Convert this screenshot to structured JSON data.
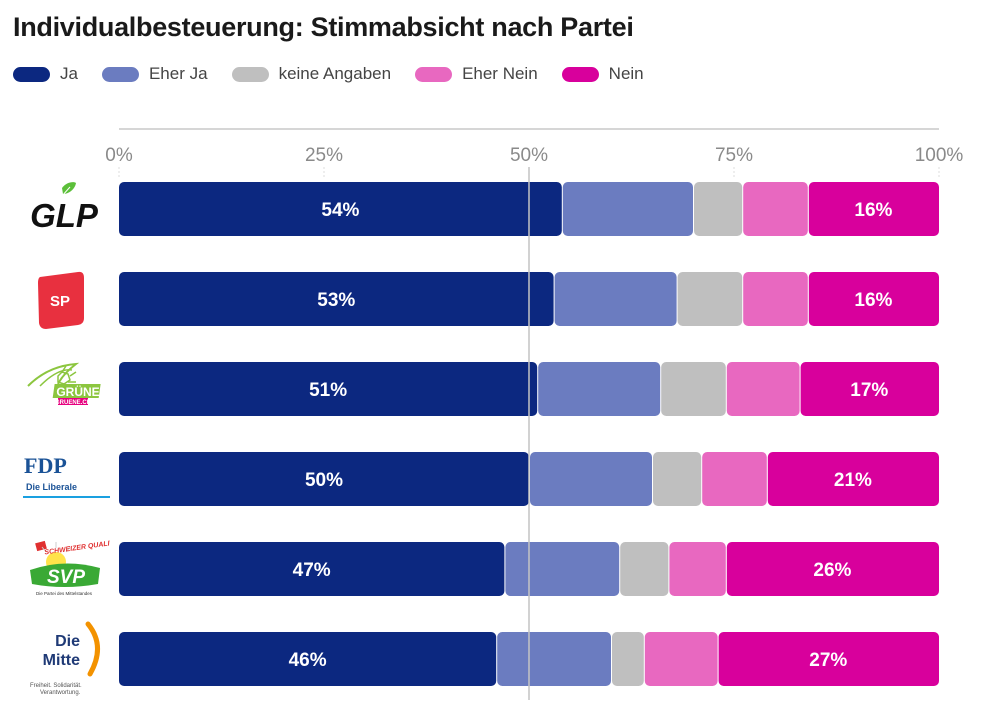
{
  "chart_data": {
    "type": "bar",
    "orientation": "horizontal",
    "stacked": true,
    "title": "Individualbesteuerung: Stimmabsicht nach Partei",
    "xlabel": "",
    "ylabel": "",
    "xlim": [
      0,
      100
    ],
    "x_ticks": [
      "0%",
      "25%",
      "50%",
      "75%",
      "100%"
    ],
    "x_tick_values": [
      0,
      25,
      50,
      75,
      100
    ],
    "reference_line": 50,
    "grid": false,
    "legend_position": "top-left",
    "categories": [
      "GLP",
      "SP",
      "GRÜNE",
      "FDP",
      "SVP",
      "Die Mitte"
    ],
    "series": [
      {
        "name": "Ja",
        "color": "#0c2880",
        "values": [
          54,
          53,
          51,
          50,
          47,
          46
        ],
        "labels": [
          "54%",
          "53%",
          "51%",
          "50%",
          "47%",
          "46%"
        ]
      },
      {
        "name": "Eher Ja",
        "color": "#6b7cc0",
        "values": [
          16,
          15,
          15,
          15,
          14,
          14
        ],
        "labels": [
          "",
          "",
          "",
          "",
          "",
          ""
        ]
      },
      {
        "name": "keine Angaben",
        "color": "#bfbfbf",
        "values": [
          6,
          8,
          8,
          6,
          6,
          4
        ],
        "labels": [
          "",
          "",
          "",
          "",
          "",
          ""
        ]
      },
      {
        "name": "Eher Nein",
        "color": "#e868c0",
        "values": [
          8,
          8,
          9,
          8,
          7,
          9
        ],
        "labels": [
          "",
          "",
          "",
          "",
          "",
          ""
        ]
      },
      {
        "name": "Nein",
        "color": "#d8009c",
        "values": [
          16,
          16,
          17,
          21,
          26,
          27
        ],
        "labels": [
          "16%",
          "16%",
          "17%",
          "21%",
          "26%",
          "27%"
        ]
      }
    ]
  },
  "logos": {
    "glp": {
      "text": "GLP"
    },
    "sp": {
      "text": "SP"
    },
    "gruene": {
      "text": "GRÜNE",
      "subtext": "GRUENE.CH"
    },
    "fdp": {
      "text": "FDP",
      "subtext": "Die Liberale"
    },
    "svp": {
      "text": "SVP",
      "badge": "SCHWEIZER QUALITÄT",
      "subtext": "Die Partei des Mittelstandes"
    },
    "mitte": {
      "line1": "Die",
      "line2": "Mitte",
      "subtext1": "Freiheit. Solidarität.",
      "subtext2": "Verantwortung."
    }
  }
}
